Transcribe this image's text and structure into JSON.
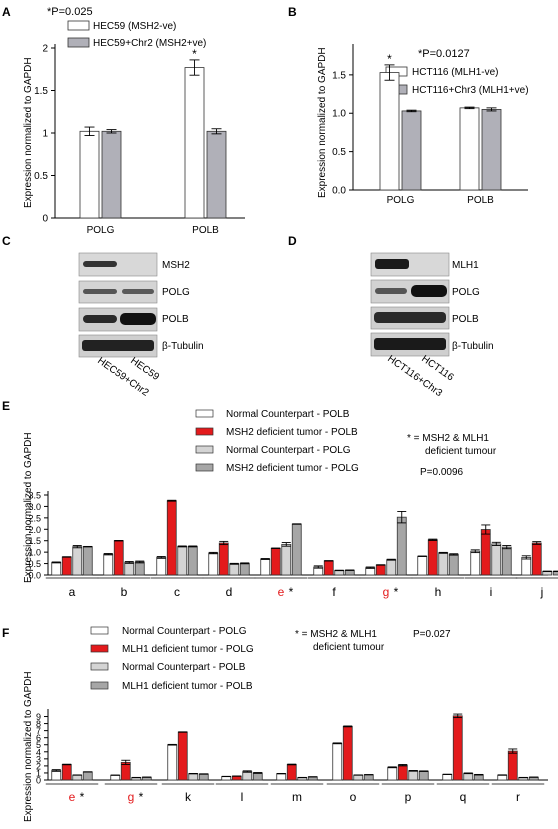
{
  "panels": {
    "A": {
      "letter": "A",
      "pvalue": "*P=0.025",
      "ylabel": "Expression normalized to GAPDH",
      "legend": [
        "HEC59 (MSH2-ve)",
        "HEC59+Chr2 (MSH2+ve)"
      ],
      "stars": [
        "*"
      ]
    },
    "B": {
      "letter": "B",
      "pvalue": "*P=0.0127",
      "ylabel": "Expression normalized to GAPDH",
      "legend": [
        "HCT116 (MLH1-ve)",
        "HCT116+Chr3 (MLH1+ve)"
      ],
      "stars": [
        "*"
      ]
    },
    "C": {
      "letter": "C",
      "bands": [
        "MSH2",
        "POLG",
        "POLB",
        "β-Tubulin"
      ],
      "lanes": [
        "HEC59+Chr2",
        "HEC59"
      ]
    },
    "D": {
      "letter": "D",
      "bands": [
        "MLH1",
        "POLG",
        "POLB",
        "β-Tubulin"
      ],
      "lanes": [
        "HCT116+Chr3",
        "HCT116"
      ]
    },
    "E": {
      "letter": "E",
      "ylabel": "Expression normalized to GAPDH",
      "legend": [
        "Normal Counterpart - POLB",
        "MSH2 deficient tumor - POLB",
        "Normal Counterpart - POLG",
        "MSH2 deficient tumor - POLG"
      ],
      "note1": "* = MSH2 & MLH1",
      "note2": "deficient tumour",
      "pvalue": "P=0.0096",
      "stars": [
        "*",
        "*"
      ]
    },
    "F": {
      "letter": "F",
      "ylabel": "Expression normalized to GAPDH",
      "legend": [
        "Normal Counterpart - POLG",
        "MLH1 deficient tumor - POLG",
        "Normal Counterpart - POLB",
        "MLH1 deficient tumor - POLB"
      ],
      "note1": "* = MSH2 & MLH1",
      "note2": "deficient tumour",
      "pvalue": "P=0.027",
      "stars": [
        "*",
        "*"
      ]
    }
  },
  "colors": {
    "red": "#e31a1c",
    "light_gray": "#d4d4d4",
    "dark_gray": "#a6a6a6",
    "mid_gray": "#b0b0b8",
    "white": "#ffffff",
    "highlight_label": "#e31a1c"
  },
  "chart_data": [
    {
      "id": "A",
      "type": "bar",
      "categories": [
        "POLG",
        "POLB"
      ],
      "ylim": [
        0,
        2
      ],
      "yticks": [
        "0",
        "0.5",
        "1",
        "1.5",
        "2"
      ],
      "series": [
        {
          "name": "HEC59 (MSH2-ve)",
          "values": [
            1.02,
            1.77
          ],
          "errors": [
            0.05,
            0.09
          ],
          "color": "#ffffff"
        },
        {
          "name": "HEC59+Chr2 (MSH2+ve)",
          "values": [
            1.02,
            1.02
          ],
          "errors": [
            0.02,
            0.03
          ],
          "color": "#b0b0b8"
        }
      ],
      "grid": false
    },
    {
      "id": "B",
      "type": "bar",
      "categories": [
        "POLG",
        "POLB"
      ],
      "ylim": [
        0,
        1.85
      ],
      "yticks": [
        "0.0",
        "0.5",
        "1.0",
        "1.5"
      ],
      "series": [
        {
          "name": "HCT116 (MLH1-ve)",
          "values": [
            1.53,
            1.07
          ],
          "errors": [
            0.1,
            0.01
          ],
          "color": "#ffffff"
        },
        {
          "name": "HCT116+Chr3 (MLH1+ve)",
          "values": [
            1.03,
            1.05
          ],
          "errors": [
            0.01,
            0.02
          ],
          "color": "#b0b0b8"
        }
      ],
      "grid": false
    },
    {
      "id": "E",
      "type": "bar",
      "categories": [
        "a",
        "b",
        "c",
        "d",
        "e",
        "f",
        "g",
        "h",
        "i",
        "j"
      ],
      "highlighted_categories": [
        "e",
        "g"
      ],
      "ylim": [
        0,
        3.5
      ],
      "yticks": [
        "0.0",
        "0.5",
        "1.0",
        "1.5",
        "2.0",
        "2.5",
        "3.0",
        "3.5"
      ],
      "series": [
        {
          "name": "Normal Counterpart - POLB",
          "values": [
            0.55,
            0.91,
            0.77,
            0.96,
            0.7,
            0.35,
            0.32,
            0.82,
            1.04,
            0.77
          ],
          "errors": [
            0.02,
            0.03,
            0.04,
            0.03,
            0.02,
            0.05,
            0.03,
            0.01,
            0.06,
            0.07
          ],
          "color": "#ffffff"
        },
        {
          "name": "MSH2 deficient tumor - POLB",
          "values": [
            0.79,
            1.5,
            3.25,
            1.4,
            1.17,
            0.62,
            0.44,
            1.54,
            1.99,
            1.4
          ],
          "errors": [
            0.01,
            0.01,
            0.02,
            0.07,
            0.01,
            0.01,
            0.01,
            0.03,
            0.2,
            0.06
          ],
          "color": "#e31a1c"
        },
        {
          "name": "Normal Counterpart - POLG",
          "values": [
            1.24,
            0.55,
            1.25,
            0.49,
            1.34,
            0.2,
            0.67,
            0.97,
            1.36,
            0.16
          ],
          "errors": [
            0.05,
            0.04,
            0.02,
            0.02,
            0.08,
            0.01,
            0.02,
            0.02,
            0.07,
            0.01
          ],
          "color": "#d4d4d4"
        },
        {
          "name": "MSH2 deficient tumor - POLG",
          "values": [
            1.24,
            0.57,
            1.25,
            0.51,
            2.23,
            0.21,
            2.53,
            0.9,
            1.22,
            0.16
          ],
          "errors": [
            0.01,
            0.04,
            0.02,
            0.02,
            0.01,
            0.01,
            0.25,
            0.03,
            0.07,
            0.01
          ],
          "color": "#a6a6a6"
        }
      ],
      "grid": false
    },
    {
      "id": "F",
      "type": "bar",
      "categories": [
        "e",
        "g",
        "k",
        "l",
        "m",
        "o",
        "p",
        "q",
        "r"
      ],
      "highlighted_categories": [
        "e",
        "g"
      ],
      "ylim": [
        0,
        9.5
      ],
      "yticks": [
        "0",
        "1",
        "2",
        "3",
        "4",
        "5",
        "6",
        "7",
        "8",
        "9"
      ],
      "series": [
        {
          "name": "Normal Counterpart - POLG",
          "values": [
            1.35,
            0.68,
            5.0,
            0.5,
            0.9,
            5.2,
            1.8,
            0.8,
            0.7
          ],
          "errors": [
            0.12,
            0.02,
            0.05,
            0.02,
            0.03,
            0.06,
            0.06,
            0.02,
            0.03
          ],
          "color": "#ffffff"
        },
        {
          "name": "MLH1 deficient tumor - POLG",
          "values": [
            2.2,
            2.5,
            6.8,
            0.55,
            2.2,
            7.6,
            2.1,
            9.1,
            4.1
          ],
          "errors": [
            0.04,
            0.3,
            0.03,
            0.02,
            0.05,
            0.06,
            0.1,
            0.25,
            0.3
          ],
          "color": "#e31a1c"
        },
        {
          "name": "Normal Counterpart - POLB",
          "values": [
            0.7,
            0.35,
            0.9,
            1.2,
            0.35,
            0.7,
            1.3,
            0.95,
            0.35
          ],
          "errors": [
            0.02,
            0.02,
            0.03,
            0.1,
            0.02,
            0.02,
            0.05,
            0.05,
            0.02
          ],
          "color": "#d4d4d4"
        },
        {
          "name": "MLH1 deficient tumor - POLB",
          "values": [
            1.15,
            0.4,
            0.85,
            1.0,
            0.45,
            0.75,
            1.25,
            0.75,
            0.4
          ],
          "errors": [
            0.02,
            0.02,
            0.03,
            0.06,
            0.02,
            0.02,
            0.04,
            0.04,
            0.02
          ],
          "color": "#a6a6a6"
        }
      ],
      "grid": false
    }
  ]
}
